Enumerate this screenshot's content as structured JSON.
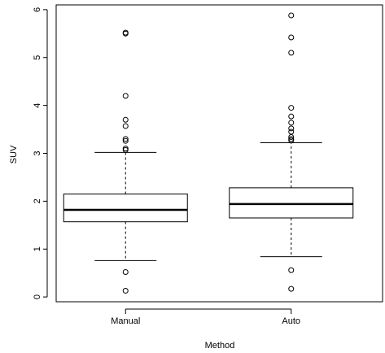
{
  "chart_data": {
    "type": "boxplot",
    "xlabel": "Method",
    "ylabel": "SUV",
    "ylim": [
      -0.1,
      6.1
    ],
    "yticks": [
      "0",
      "1",
      "2",
      "3",
      "4",
      "5",
      "6"
    ],
    "categories": [
      "Manual",
      "Auto"
    ],
    "boxes": [
      {
        "name": "Manual",
        "whisker_low": 0.76,
        "q1": 1.57,
        "median": 1.82,
        "q3": 2.15,
        "whisker_high": 3.02,
        "outliers": [
          0.13,
          0.52,
          3.07,
          3.1,
          3.26,
          3.3,
          3.57,
          3.7,
          4.2,
          5.5,
          5.52
        ]
      },
      {
        "name": "Auto",
        "whisker_low": 0.84,
        "q1": 1.65,
        "median": 1.94,
        "q3": 2.28,
        "whisker_high": 3.22,
        "outliers": [
          0.17,
          0.56,
          3.27,
          3.3,
          3.34,
          3.45,
          3.52,
          3.64,
          3.77,
          3.95,
          5.1,
          5.42,
          5.88
        ]
      }
    ]
  }
}
